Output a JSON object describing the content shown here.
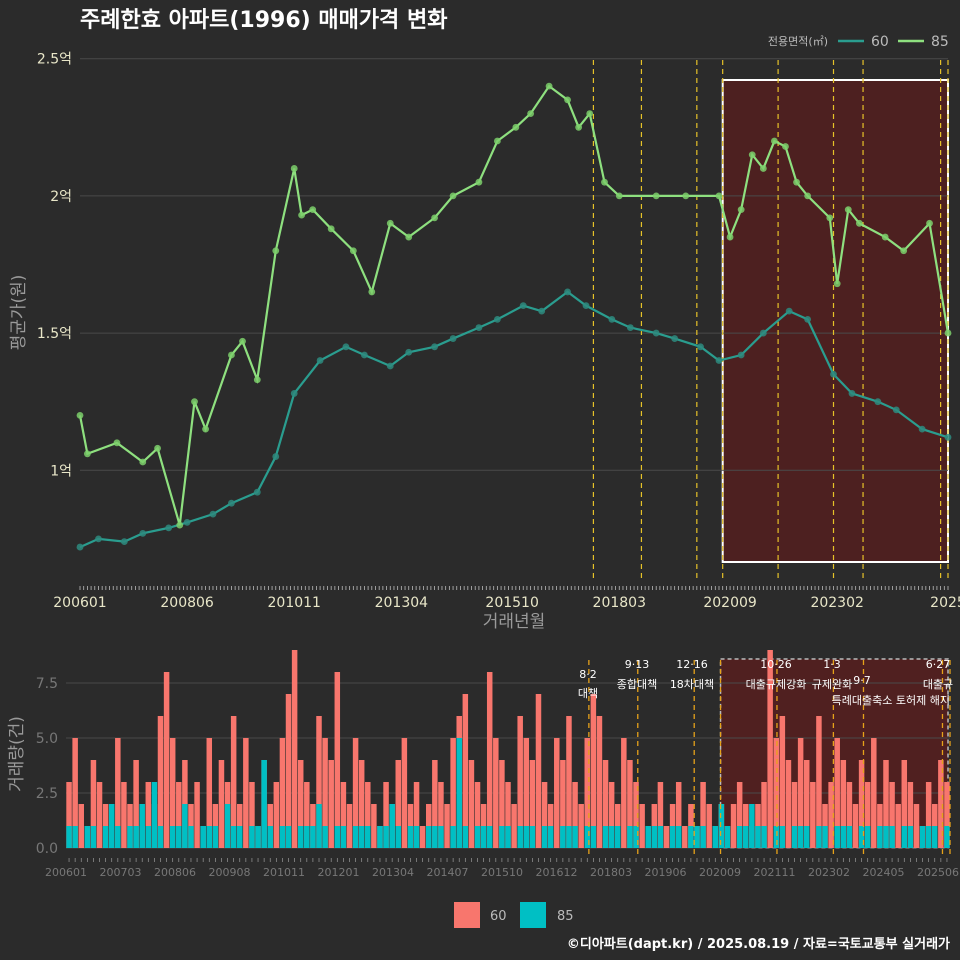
{
  "title": "주례한효 아파트(1996) 매매가격 변화",
  "credit": "©디아파트(dapt.kr) / 2025.08.19 / 자료=국토교통부 실거래가",
  "colors": {
    "background": "#2b2b2b",
    "series_60_line": "#2a9d8f",
    "series_60_point": "#2e8b7f",
    "series_85_line": "#8ee07f",
    "series_85_point": "#7ccf6b",
    "bar_60": "#f8766d",
    "bar_85": "#00bfc4",
    "policy_line": "#e6c229",
    "highlight_fill": "#5a1e1e",
    "grid": "#4a4a4a",
    "axis_text": "#e8e6c8"
  },
  "chart_data": [
    {
      "type": "line",
      "name": "price",
      "title": "주례한효 아파트(1996) 매매가격 변화",
      "xlabel": "거래년월",
      "ylabel": "평균가(원)",
      "x_range": [
        "2006-01",
        "2025-08"
      ],
      "ylim": [
        0.6,
        2.55
      ],
      "y_unit": "억",
      "y_ticks": [
        1,
        1.5,
        2,
        2.5
      ],
      "y_tick_labels": [
        "1억",
        "1.5억",
        "2억",
        "2.5억"
      ],
      "x_ticks": [
        "2006-01",
        "2008-06",
        "2010-11",
        "2013-04",
        "2015-10",
        "2018-03",
        "2020-09",
        "2023-02",
        "2025-08"
      ],
      "x_tick_labels": [
        "200601",
        "200806",
        "201011",
        "201304",
        "201510",
        "201803",
        "202009",
        "202302",
        "2025"
      ],
      "legend_title": "전용면적(㎡)",
      "legend_position": "top-right",
      "grid": true,
      "series": [
        {
          "name": "60",
          "x": [
            "2006-01",
            "2006-06",
            "2007-01",
            "2007-06",
            "2008-01",
            "2008-06",
            "2009-01",
            "2009-06",
            "2010-01",
            "2010-06",
            "2010-11",
            "2011-06",
            "2012-01",
            "2012-06",
            "2013-01",
            "2013-06",
            "2014-01",
            "2014-06",
            "2015-01",
            "2015-06",
            "2016-01",
            "2016-06",
            "2017-01",
            "2017-06",
            "2018-01",
            "2018-06",
            "2019-01",
            "2019-06",
            "2020-01",
            "2020-06",
            "2020-12",
            "2021-06",
            "2022-01",
            "2022-06",
            "2023-01",
            "2023-06",
            "2024-01",
            "2024-06",
            "2025-01",
            "2025-08"
          ],
          "values": [
            0.72,
            0.75,
            0.74,
            0.77,
            0.79,
            0.81,
            0.84,
            0.88,
            0.92,
            1.05,
            1.28,
            1.4,
            1.45,
            1.42,
            1.38,
            1.43,
            1.45,
            1.48,
            1.52,
            1.55,
            1.6,
            1.58,
            1.65,
            1.6,
            1.55,
            1.52,
            1.5,
            1.48,
            1.45,
            1.4,
            1.42,
            1.5,
            1.58,
            1.55,
            1.35,
            1.28,
            1.25,
            1.22,
            1.15,
            1.12
          ]
        },
        {
          "name": "85",
          "x": [
            "2006-01",
            "2006-03",
            "2006-11",
            "2007-06",
            "2007-10",
            "2008-04",
            "2008-08",
            "2008-11",
            "2009-06",
            "2009-09",
            "2010-01",
            "2010-06",
            "2010-11",
            "2011-01",
            "2011-04",
            "2011-09",
            "2012-03",
            "2012-08",
            "2013-01",
            "2013-06",
            "2014-01",
            "2014-06",
            "2015-01",
            "2015-06",
            "2015-11",
            "2016-03",
            "2016-08",
            "2017-01",
            "2017-04",
            "2017-07",
            "2017-11",
            "2018-03",
            "2019-01",
            "2019-09",
            "2020-06",
            "2020-09",
            "2020-12",
            "2021-03",
            "2021-06",
            "2021-09",
            "2021-12",
            "2022-03",
            "2022-06",
            "2022-12",
            "2023-02",
            "2023-05",
            "2023-08",
            "2024-03",
            "2024-08",
            "2025-03",
            "2025-08"
          ],
          "values": [
            1.2,
            1.06,
            1.1,
            1.03,
            1.08,
            0.8,
            1.25,
            1.15,
            1.42,
            1.47,
            1.33,
            1.8,
            2.1,
            1.93,
            1.95,
            1.88,
            1.8,
            1.65,
            1.9,
            1.85,
            1.92,
            2.0,
            2.05,
            2.2,
            2.25,
            2.3,
            2.4,
            2.35,
            2.25,
            2.3,
            2.05,
            2.0,
            2.0,
            2.0,
            2.0,
            1.85,
            1.95,
            2.15,
            2.1,
            2.2,
            2.18,
            2.05,
            2.0,
            1.92,
            1.68,
            1.95,
            1.9,
            1.85,
            1.8,
            1.9,
            1.5
          ]
        }
      ],
      "policy_lines": [
        "2017-08",
        "2018-09",
        "2019-12",
        "2020-07",
        "2021-10",
        "2023-01",
        "2023-09",
        "2025-06",
        "2025-08"
      ],
      "highlight_range": [
        "2020-07",
        "2025-08"
      ]
    },
    {
      "type": "bar",
      "name": "volume",
      "ylabel": "거래량(건)",
      "ylim": [
        0,
        9
      ],
      "y_ticks": [
        0,
        2.5,
        5,
        7.5
      ],
      "y_tick_labels": [
        "0.0",
        "2.5",
        "5.0",
        "7.5"
      ],
      "x_tick_labels": [
        "200601",
        "200703",
        "200806",
        "200908",
        "201011",
        "201201",
        "201304",
        "201407",
        "201510",
        "201612",
        "201803",
        "201906",
        "202009",
        "202111",
        "202302",
        "202405",
        "202506"
      ],
      "legend_position": "bottom",
      "series": [
        {
          "name": "60",
          "values": [
            3,
            5,
            2,
            1,
            4,
            3,
            2,
            1,
            5,
            3,
            2,
            4,
            1,
            3,
            2,
            6,
            8,
            5,
            3,
            4,
            2,
            3,
            1,
            5,
            2,
            4,
            3,
            6,
            2,
            5,
            3,
            1,
            4,
            2,
            3,
            5,
            7,
            9,
            4,
            3,
            2,
            6,
            5,
            4,
            8,
            3,
            2,
            5,
            4,
            3,
            2,
            1,
            3,
            2,
            4,
            5,
            2,
            3,
            1,
            2,
            4,
            3,
            2,
            5,
            6,
            7,
            4,
            3,
            2,
            8,
            5,
            4,
            3,
            2,
            6,
            5,
            4,
            7,
            3,
            2,
            5,
            4,
            6,
            3,
            2,
            5,
            7,
            6,
            4,
            3,
            2,
            5,
            4,
            3,
            2,
            1,
            2,
            3,
            1,
            2,
            3,
            1,
            2,
            1,
            3,
            2,
            1,
            2,
            1,
            2,
            3,
            2,
            1,
            2,
            3,
            9,
            5,
            6,
            4,
            3,
            5,
            4,
            3,
            6,
            2,
            3,
            5,
            4,
            3,
            2,
            4,
            3,
            5,
            2,
            4,
            3,
            2,
            4,
            3,
            2,
            1,
            3,
            2,
            4,
            3
          ]
        },
        {
          "name": "85",
          "values": [
            1,
            1,
            0,
            1,
            1,
            0,
            1,
            2,
            1,
            0,
            1,
            1,
            2,
            1,
            3,
            1,
            0,
            1,
            1,
            2,
            1,
            0,
            1,
            1,
            1,
            0,
            2,
            1,
            1,
            0,
            1,
            1,
            4,
            1,
            0,
            1,
            1,
            0,
            1,
            1,
            1,
            2,
            1,
            0,
            1,
            1,
            0,
            1,
            1,
            1,
            0,
            1,
            1,
            2,
            1,
            0,
            1,
            1,
            0,
            1,
            1,
            1,
            0,
            1,
            5,
            1,
            0,
            1,
            1,
            1,
            0,
            1,
            1,
            0,
            1,
            1,
            1,
            0,
            1,
            1,
            0,
            1,
            1,
            1,
            0,
            1,
            1,
            0,
            1,
            1,
            1,
            0,
            1,
            1,
            0,
            1,
            1,
            1,
            0,
            1,
            1,
            0,
            1,
            1,
            1,
            0,
            1,
            2,
            1,
            0,
            1,
            1,
            2,
            1,
            1,
            0,
            1,
            1,
            0,
            1,
            1,
            1,
            0,
            1,
            1,
            0,
            1,
            1,
            1,
            0,
            1,
            1,
            0,
            1,
            1,
            1,
            0,
            1,
            1,
            0,
            1,
            1,
            1,
            0,
            1
          ]
        }
      ],
      "annotations": [
        {
          "date": "8·2",
          "label": "대책"
        },
        {
          "date": "9·13",
          "label": "종합대책"
        },
        {
          "date": "12·16",
          "label": "18차대책"
        },
        {
          "date": "10·26",
          "label": "대출규제강화"
        },
        {
          "date": "1·3",
          "label": "규제완화"
        },
        {
          "date": "9·7",
          "label": "특례대출축소"
        },
        {
          "date": "",
          "label": "토허제 해지"
        },
        {
          "date": "6·27",
          "label": "대출규"
        }
      ]
    }
  ],
  "legend_bottom": [
    "60",
    "85"
  ]
}
